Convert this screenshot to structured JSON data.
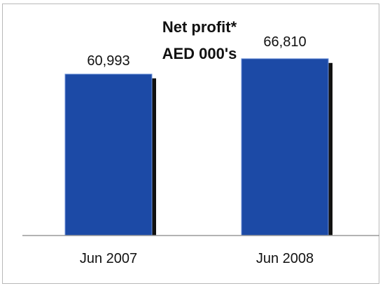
{
  "chart_data": {
    "type": "bar",
    "title": "Net profit*",
    "subtitle": "AED 000's",
    "categories": [
      "Jun 2007",
      "Jun 2008"
    ],
    "values": [
      60993,
      66810
    ],
    "value_labels": [
      "60,993",
      "66,810"
    ],
    "ylim": [
      0,
      80000
    ],
    "grid": false,
    "legend": "none",
    "colors": {
      "bar": "#1c4aa6",
      "bar_edge": "#6f93d9",
      "shadow": "#111111",
      "axis": "#9a9a9a",
      "frame": "#b9b9b9"
    }
  }
}
